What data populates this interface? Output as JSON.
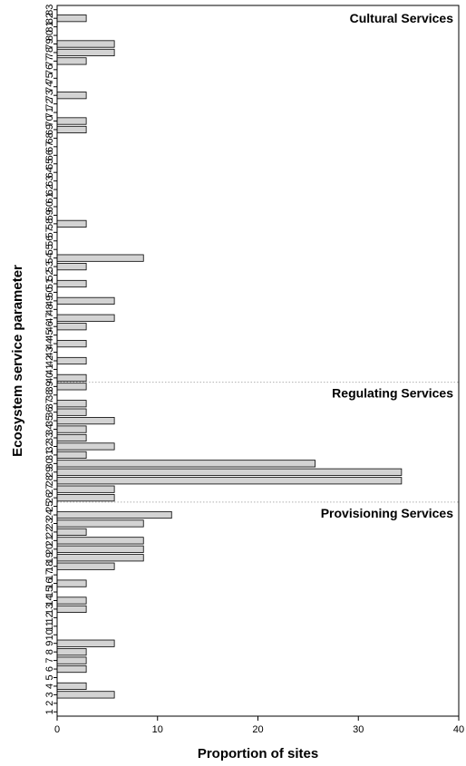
{
  "chart_data": {
    "type": "bar",
    "orientation": "horizontal",
    "xlabel": "Proportion of sites",
    "ylabel": "Ecosystem service parameter",
    "xlim": [
      0,
      40
    ],
    "xticks": [
      0,
      10,
      20,
      30,
      40
    ],
    "ylim": [
      1,
      83
    ],
    "grid": false,
    "bar_color": "#d3d3d3",
    "bar_edge_color": "#000000",
    "divider_color": "#b0b0b0",
    "sections": [
      {
        "name": "Cultural Services",
        "boundary_below": null
      },
      {
        "name": "Regulating Services",
        "boundary_below": 39.5
      },
      {
        "name": "Provisioning Services",
        "boundary_below": 25.5
      }
    ],
    "categories": [
      1,
      2,
      3,
      4,
      5,
      6,
      7,
      8,
      9,
      10,
      11,
      12,
      13,
      14,
      15,
      16,
      17,
      18,
      19,
      20,
      21,
      22,
      23,
      24,
      25,
      26,
      27,
      28,
      29,
      30,
      31,
      32,
      33,
      34,
      35,
      36,
      37,
      38,
      39,
      40,
      41,
      42,
      43,
      44,
      45,
      46,
      47,
      48,
      49,
      50,
      51,
      52,
      53,
      54,
      55,
      56,
      57,
      58,
      59,
      60,
      61,
      62,
      63,
      64,
      65,
      66,
      67,
      68,
      69,
      70,
      71,
      72,
      73,
      74,
      75,
      76,
      77,
      78,
      79,
      80,
      81,
      82,
      83
    ],
    "values": [
      0,
      0,
      5.7,
      2.9,
      0,
      2.9,
      2.9,
      2.9,
      5.7,
      0,
      0,
      0,
      2.9,
      2.9,
      0,
      2.9,
      0,
      5.7,
      8.6,
      8.6,
      8.6,
      2.9,
      8.6,
      11.4,
      0,
      5.7,
      5.7,
      34.3,
      34.3,
      25.7,
      2.9,
      5.7,
      2.9,
      2.9,
      5.7,
      2.9,
      2.9,
      0,
      2.9,
      2.9,
      0,
      2.9,
      0,
      2.9,
      0,
      2.9,
      5.7,
      0,
      5.7,
      0,
      2.9,
      0,
      2.9,
      8.6,
      0,
      0,
      0,
      2.9,
      0,
      0,
      0,
      0,
      0,
      0,
      0,
      0,
      0,
      0,
      2.9,
      2.9,
      0,
      0,
      2.9,
      0,
      0,
      0,
      2.9,
      5.7,
      5.7,
      0,
      0,
      2.9,
      0
    ]
  }
}
